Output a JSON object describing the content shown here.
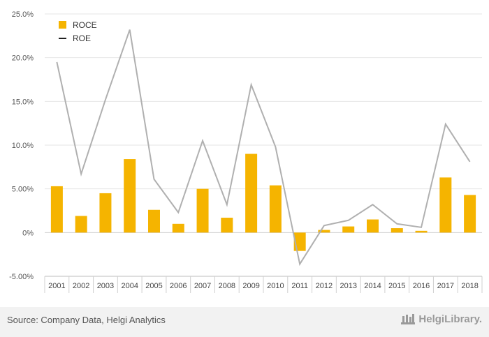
{
  "chart_data": {
    "type": "bar",
    "categories": [
      "2001",
      "2002",
      "2003",
      "2004",
      "2005",
      "2006",
      "2007",
      "2008",
      "2009",
      "2010",
      "2011",
      "2012",
      "2013",
      "2014",
      "2015",
      "2016",
      "2017",
      "2018"
    ],
    "series": [
      {
        "name": "ROCE",
        "type": "bar",
        "color": "#f5b400",
        "values": [
          5.3,
          1.9,
          4.5,
          8.4,
          2.6,
          1.0,
          5.0,
          1.7,
          9.0,
          5.4,
          -2.1,
          0.3,
          0.7,
          1.5,
          0.5,
          0.2,
          6.3,
          4.3
        ]
      },
      {
        "name": "ROE",
        "type": "line",
        "color": "#b0b0b0",
        "values": [
          19.5,
          6.7,
          15.2,
          23.2,
          6.1,
          2.3,
          10.5,
          3.2,
          16.9,
          9.8,
          -3.6,
          0.8,
          1.4,
          3.2,
          1.0,
          0.6,
          12.4,
          8.1
        ]
      }
    ],
    "y_ticks": [
      "25.0%",
      "20.0%",
      "15.0%",
      "10.0%",
      "5.00%",
      "0%",
      "-5.00%"
    ],
    "ylim": [
      -5,
      25
    ],
    "grid": true,
    "legend_position": "top-left",
    "legend_marker_color_roe": "#222222"
  },
  "footer": {
    "source": "Source: Company Data, Helgi Analytics",
    "brand": "HelgiLibrary."
  },
  "colors": {
    "bar": "#f5b400",
    "line": "#b0b0b0",
    "grid": "#e6e6e6",
    "axis": "#bdbdbd"
  }
}
